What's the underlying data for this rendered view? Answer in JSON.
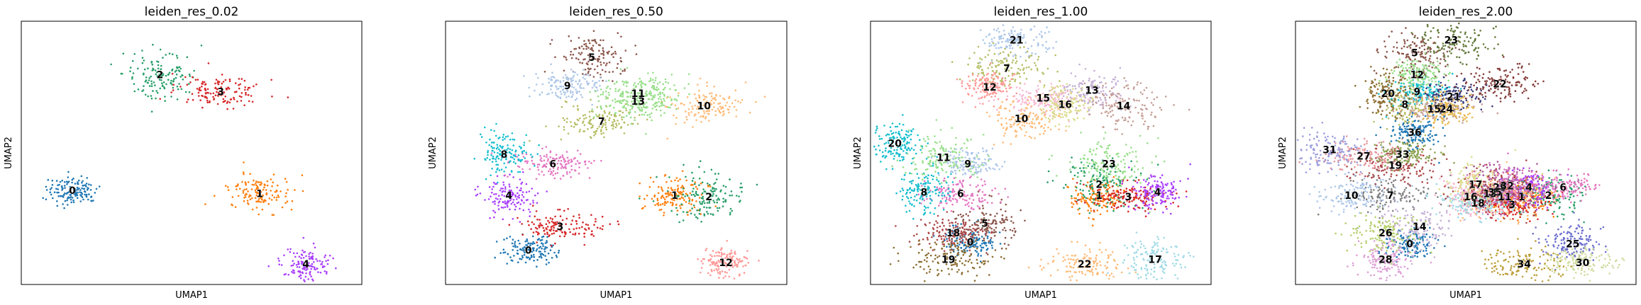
{
  "chart_data": [
    {
      "type": "scatter",
      "title": "leiden_res_0.02",
      "xlabel": "UMAP1",
      "ylabel": "UMAP2",
      "grid": false,
      "clusters": [
        {
          "label": "0",
          "color": "#1f77b4",
          "label_at": [
            -1.5,
            0.4
          ]
        },
        {
          "label": "1",
          "color": "#ff7f0e",
          "label_at": [
            6.2,
            0.2
          ]
        },
        {
          "label": "2",
          "color": "#279e68",
          "label_at": [
            2.1,
            7.8
          ]
        },
        {
          "label": "3",
          "color": "#d62728",
          "label_at": [
            4.6,
            6.7
          ]
        },
        {
          "label": "4",
          "color": "#aa40fc",
          "label_at": [
            8.1,
            -4.3
          ]
        }
      ]
    },
    {
      "type": "scatter",
      "title": "leiden_res_0.50",
      "xlabel": "UMAP1",
      "ylabel": "UMAP2",
      "grid": false,
      "clusters": [
        {
          "label": "0",
          "color": "#1f77b4",
          "label_at": [
            -0.2,
            -3.4
          ]
        },
        {
          "label": "1",
          "color": "#ff7f0e",
          "label_at": [
            5.8,
            0.1
          ]
        },
        {
          "label": "2",
          "color": "#279e68",
          "label_at": [
            7.2,
            0.0
          ]
        },
        {
          "label": "3",
          "color": "#d62728",
          "label_at": [
            1.1,
            -1.9
          ]
        },
        {
          "label": "4",
          "color": "#aa40fc",
          "label_at": [
            -1.0,
            0.1
          ]
        },
        {
          "label": "5",
          "color": "#8c564b",
          "label_at": [
            2.4,
            8.9
          ]
        },
        {
          "label": "6",
          "color": "#e377c2",
          "label_at": [
            0.8,
            2.1
          ]
        },
        {
          "label": "7",
          "color": "#b5bd61",
          "label_at": [
            2.8,
            4.8
          ]
        },
        {
          "label": "8",
          "color": "#17becf",
          "label_at": [
            -1.2,
            2.7
          ]
        },
        {
          "label": "9",
          "color": "#aec7e8",
          "label_at": [
            1.4,
            7.1
          ]
        },
        {
          "label": "10",
          "color": "#ffbb78",
          "label_at": [
            7.0,
            5.8
          ]
        },
        {
          "label": "11",
          "color": "#98df8a",
          "label_at": [
            4.3,
            6.6
          ]
        },
        {
          "label": "12",
          "color": "#ff9896",
          "label_at": [
            7.9,
            -4.2
          ]
        },
        {
          "label": "13",
          "color": "#98df8a",
          "label_at": [
            4.3,
            6.1
          ]
        }
      ]
    },
    {
      "type": "scatter",
      "title": "leiden_res_1.00",
      "xlabel": "UMAP1",
      "ylabel": "UMAP2",
      "grid": false,
      "clusters": [
        {
          "label": "0",
          "color": "#1f77b4",
          "label_at": [
            0.5,
            -2.9
          ]
        },
        {
          "label": "1",
          "color": "#ff7f0e",
          "label_at": [
            5.8,
            0.1
          ]
        },
        {
          "label": "2",
          "color": "#279e68",
          "label_at": [
            5.8,
            0.8
          ]
        },
        {
          "label": "3",
          "color": "#d62728",
          "label_at": [
            7.0,
            0.0
          ]
        },
        {
          "label": "4",
          "color": "#aa40fc",
          "label_at": [
            8.2,
            0.3
          ]
        },
        {
          "label": "5",
          "color": "#8c564b",
          "label_at": [
            1.1,
            -1.7
          ]
        },
        {
          "label": "6",
          "color": "#e377c2",
          "label_at": [
            0.1,
            0.2
          ]
        },
        {
          "label": "7",
          "color": "#b5bd61",
          "label_at": [
            2.0,
            8.2
          ]
        },
        {
          "label": "8",
          "color": "#17becf",
          "label_at": [
            -1.4,
            0.3
          ]
        },
        {
          "label": "9",
          "color": "#aec7e8",
          "label_at": [
            0.4,
            2.1
          ]
        },
        {
          "label": "10",
          "color": "#ffbb78",
          "label_at": [
            2.6,
            5.0
          ]
        },
        {
          "label": "11",
          "color": "#98df8a",
          "label_at": [
            -0.6,
            2.5
          ]
        },
        {
          "label": "12",
          "color": "#ff9896",
          "label_at": [
            1.3,
            7.0
          ]
        },
        {
          "label": "13",
          "color": "#c5b0d5",
          "label_at": [
            5.5,
            6.8
          ]
        },
        {
          "label": "14",
          "color": "#c49c94",
          "label_at": [
            6.8,
            5.8
          ]
        },
        {
          "label": "15",
          "color": "#f7b6d2",
          "label_at": [
            3.5,
            6.3
          ]
        },
        {
          "label": "16",
          "color": "#dbdb8d",
          "label_at": [
            4.4,
            5.9
          ]
        },
        {
          "label": "17",
          "color": "#9edae5",
          "label_at": [
            8.1,
            -4.0
          ]
        },
        {
          "label": "18",
          "color": "#ad494a",
          "label_at": [
            -0.2,
            -2.3
          ]
        },
        {
          "label": "19",
          "color": "#8c6d31",
          "label_at": [
            -0.4,
            -4.0
          ]
        },
        {
          "label": "20",
          "color": "#17becf",
          "label_at": [
            -2.6,
            3.4
          ]
        },
        {
          "label": "21",
          "color": "#aec7e8",
          "label_at": [
            2.4,
            10.0
          ]
        },
        {
          "label": "22",
          "color": "#ffbb78",
          "label_at": [
            5.2,
            -4.3
          ]
        },
        {
          "label": "23",
          "color": "#98df8a",
          "label_at": [
            6.2,
            2.1
          ]
        }
      ]
    },
    {
      "type": "scatter",
      "title": "leiden_res_2.00",
      "xlabel": "UMAP1",
      "ylabel": "UMAP2",
      "grid": false,
      "clusters": [
        {
          "label": "0",
          "color": "#1f77b4",
          "label_at": [
            1.1,
            -3.0
          ]
        },
        {
          "label": "1",
          "color": "#ff7f0e",
          "label_at": [
            5.7,
            0.0
          ]
        },
        {
          "label": "2",
          "color": "#279e68",
          "label_at": [
            6.8,
            0.1
          ]
        },
        {
          "label": "3",
          "color": "#d62728",
          "label_at": [
            5.3,
            -0.5
          ]
        },
        {
          "label": "4",
          "color": "#aa40fc",
          "label_at": [
            6.0,
            0.6
          ]
        },
        {
          "label": "5",
          "color": "#8c564b",
          "label_at": [
            1.3,
            9.2
          ]
        },
        {
          "label": "6",
          "color": "#e377c2",
          "label_at": [
            7.4,
            0.6
          ]
        },
        {
          "label": "7",
          "color": "#7f7f7f",
          "label_at": [
            0.3,
            0.1
          ]
        },
        {
          "label": "8",
          "color": "#b5bd61",
          "label_at": [
            0.9,
            5.9
          ]
        },
        {
          "label": "9",
          "color": "#17becf",
          "label_at": [
            1.4,
            6.7
          ]
        },
        {
          "label": "10",
          "color": "#aec7e8",
          "label_at": [
            -1.3,
            0.1
          ]
        },
        {
          "label": "11",
          "color": "#ffbb78",
          "label_at": [
            5.0,
            0.0
          ]
        },
        {
          "label": "12",
          "color": "#98df8a",
          "label_at": [
            1.4,
            7.8
          ]
        },
        {
          "label": "13",
          "color": "#ff9896",
          "label_at": [
            4.4,
            0.2
          ]
        },
        {
          "label": "14",
          "color": "#c5b0d5",
          "label_at": [
            1.5,
            -1.9
          ]
        },
        {
          "label": "15",
          "color": "#c49c94",
          "label_at": [
            2.1,
            5.6
          ]
        },
        {
          "label": "16",
          "color": "#f7b6d2",
          "label_at": [
            3.6,
            0.0
          ]
        },
        {
          "label": "17",
          "color": "#dbdb8d",
          "label_at": [
            3.8,
            0.8
          ]
        },
        {
          "label": "18",
          "color": "#9edae5",
          "label_at": [
            3.9,
            -0.4
          ]
        },
        {
          "label": "19",
          "color": "#ad494a",
          "label_at": [
            0.5,
            2.0
          ]
        },
        {
          "label": "20",
          "color": "#8c6d31",
          "label_at": [
            0.2,
            6.6
          ]
        },
        {
          "label": "21",
          "color": "#393b79",
          "label_at": [
            2.9,
            6.4
          ]
        },
        {
          "label": "22",
          "color": "#843c39",
          "label_at": [
            4.8,
            7.2
          ]
        },
        {
          "label": "23",
          "color": "#637939",
          "label_at": [
            2.8,
            10.0
          ]
        },
        {
          "label": "24",
          "color": "#e7ba52",
          "label_at": [
            2.6,
            5.6
          ]
        },
        {
          "label": "25",
          "color": "#6b6ecf",
          "label_at": [
            7.8,
            -3.0
          ]
        },
        {
          "label": "26",
          "color": "#b5cf6b",
          "label_at": [
            0.1,
            -2.3
          ]
        },
        {
          "label": "27",
          "color": "#e7969c",
          "label_at": [
            -0.8,
            2.6
          ]
        },
        {
          "label": "28",
          "color": "#de9ed6",
          "label_at": [
            0.1,
            -4.0
          ]
        },
        {
          "label": "29",
          "color": "#a55194",
          "label_at": [
            4.8,
            0.6
          ]
        },
        {
          "label": "30",
          "color": "#cedb9c",
          "label_at": [
            8.2,
            -4.2
          ]
        },
        {
          "label": "31",
          "color": "#9c9ede",
          "label_at": [
            -2.2,
            3.0
          ]
        },
        {
          "label": "32",
          "color": "#ce6dbd",
          "label_at": [
            5.1,
            0.7
          ]
        },
        {
          "label": "33",
          "color": "#8ca252",
          "label_at": [
            0.8,
            2.7
          ]
        },
        {
          "label": "34",
          "color": "#bd9e39",
          "label_at": [
            5.8,
            -4.3
          ]
        },
        {
          "label": "35",
          "color": "#ad494a",
          "label_at": [
            4.6,
            0.3
          ]
        },
        {
          "label": "36",
          "color": "#1f77b4",
          "label_at": [
            1.3,
            4.1
          ]
        }
      ]
    }
  ]
}
